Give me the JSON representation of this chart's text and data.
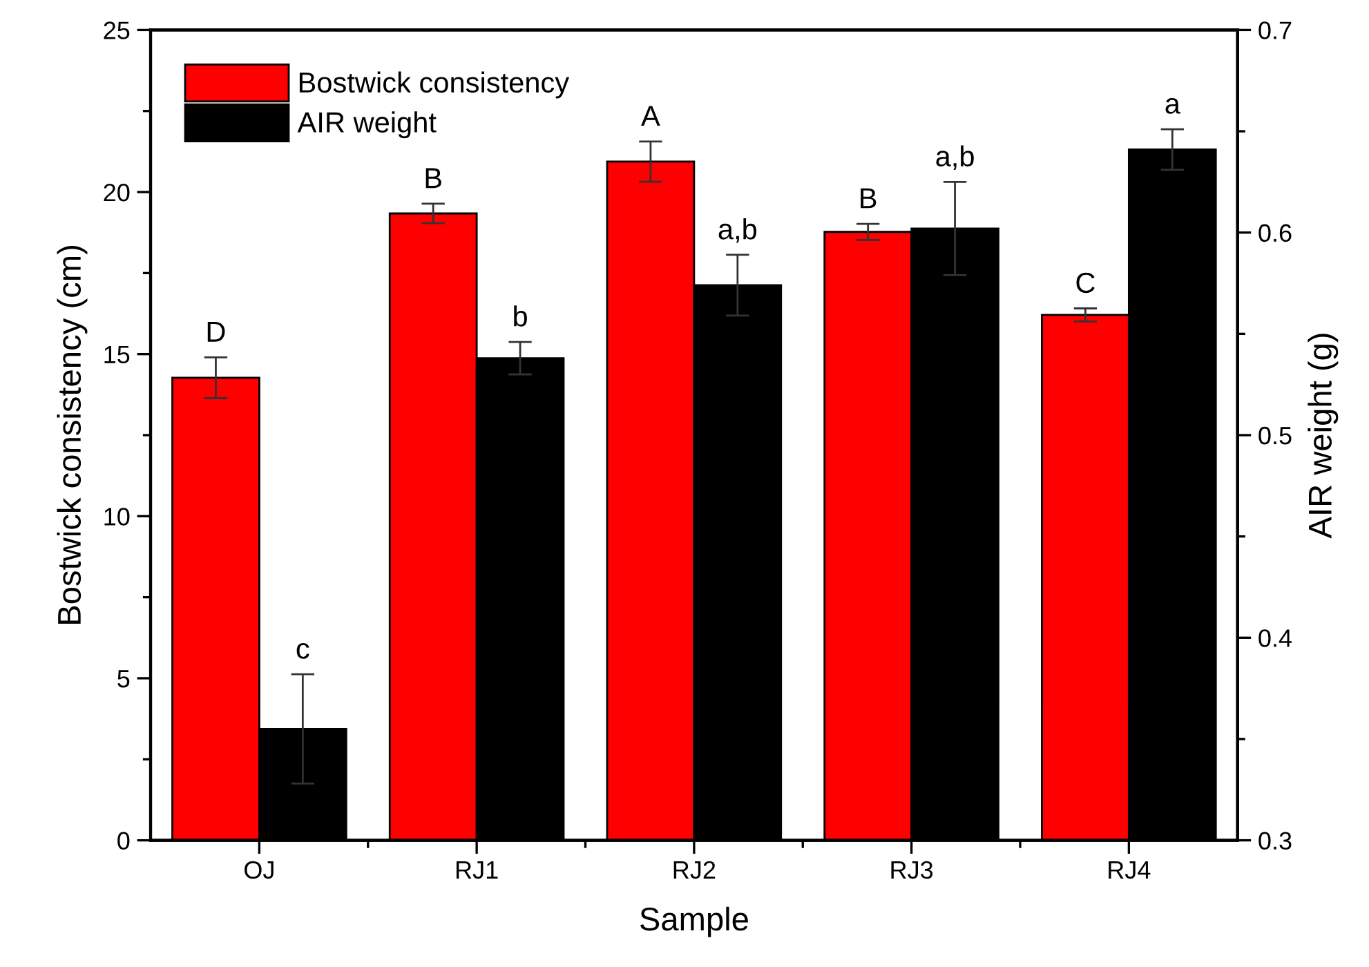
{
  "chart_data": {
    "type": "bar",
    "xlabel": "Sample",
    "ylabel": "Bostwick consistency (cm)",
    "y2label": "AIR weight (g)",
    "categories": [
      "OJ",
      "RJ1",
      "RJ2",
      "RJ3",
      "RJ4"
    ],
    "series": [
      {
        "name": "Bostwick consistency",
        "color": "#ff0000",
        "values": [
          14.27,
          19.34,
          20.94,
          18.77,
          16.21
        ],
        "errors": [
          0.63,
          0.3,
          0.62,
          0.25,
          0.2
        ],
        "value_labels": [
          "D",
          "B",
          "A",
          "B",
          "C"
        ]
      },
      {
        "name": "AIR weight",
        "color": "#000000",
        "axis": "y2",
        "values": [
          0.355,
          0.538,
          0.574,
          0.602,
          0.641
        ],
        "errors": [
          0.027,
          0.008,
          0.015,
          0.023,
          0.01
        ],
        "value_labels": [
          "c",
          "b",
          "a,b",
          "a,b",
          "a"
        ]
      }
    ],
    "ylim": [
      0,
      25
    ],
    "yticks": [
      0,
      5,
      10,
      15,
      20,
      25
    ],
    "y2lim": [
      0.3,
      0.7
    ],
    "y2ticks": [
      0.3,
      0.4,
      0.5,
      0.6,
      0.7
    ],
    "legend": "top left",
    "grid": false
  }
}
